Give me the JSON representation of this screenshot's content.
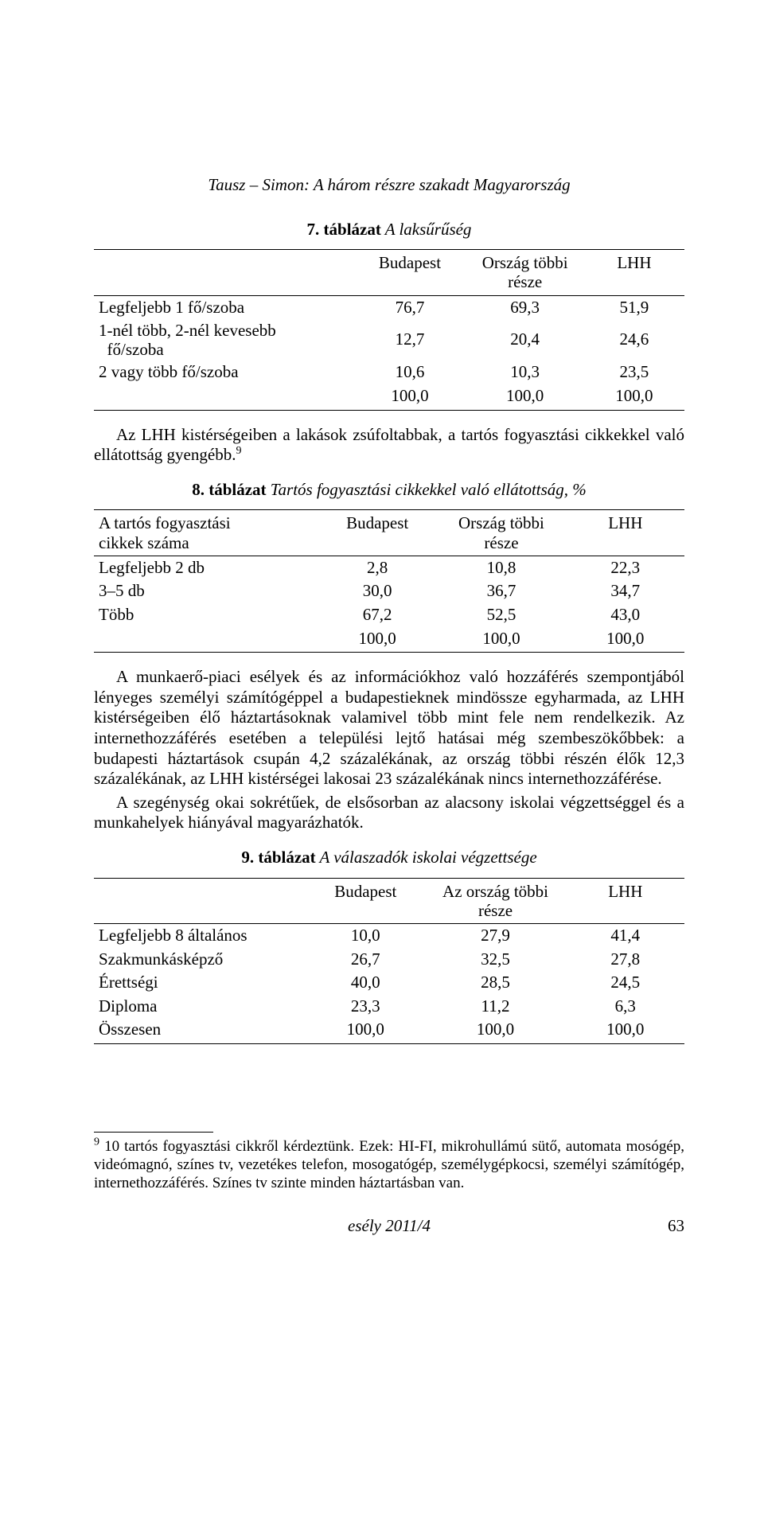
{
  "running_head": "Tausz – Simon: A három részre szakadt Magyarország",
  "table7": {
    "caption_num": "7. táblázat",
    "caption_text": " A laksűrűség",
    "columns": [
      "",
      "Budapest",
      "Ország többi része",
      "LHH"
    ],
    "rows": [
      {
        "label": "Legfeljebb 1 fő/szoba",
        "c1": "76,7",
        "c2": "69,3",
        "c3": "51,9"
      },
      {
        "label": "1-nél több, 2-nél kevesebb fő/szoba",
        "c1": "12,7",
        "c2": "20,4",
        "c3": "24,6"
      },
      {
        "label": "2 vagy több fő/szoba",
        "c1": "10,6",
        "c2": "10,3",
        "c3": "23,5"
      },
      {
        "label": "",
        "c1": "100,0",
        "c2": "100,0",
        "c3": "100,0"
      }
    ],
    "col_widths": [
      "44%",
      "19%",
      "20%",
      "17%"
    ]
  },
  "para_after_t7": "Az LHH kistérségeiben a lakások zsúfoltabbak, a tartós fogyasztási cikkekkel való ellátottság gyengébb.",
  "para_after_t7_sup": "9",
  "table8": {
    "caption_num": "8. táblázat",
    "caption_text": " Tartós fogyasztási cikkekkel való ellátottság, %",
    "columns": [
      "A tartós fogyasztási cikkek száma",
      "Budapest",
      "Ország többi része",
      "LHH"
    ],
    "rows": [
      {
        "label": "Legfeljebb 2 db",
        "c1": "2,8",
        "c2": "10,8",
        "c3": "22,3"
      },
      {
        "label": "3–5 db",
        "c1": "30,0",
        "c2": "36,7",
        "c3": "34,7"
      },
      {
        "label": "Több",
        "c1": "67,2",
        "c2": "52,5",
        "c3": "43,0"
      },
      {
        "label": "",
        "c1": "100,0",
        "c2": "100,0",
        "c3": "100,0"
      }
    ],
    "col_widths": [
      "38%",
      "20%",
      "22%",
      "20%"
    ]
  },
  "para_after_t8": "A munkaerő-piaci esélyek és az információkhoz való hozzáférés szempontjából lényeges személyi számítógéppel a budapestieknek mindössze egyharmada, az LHH kistérségeiben élő háztartásoknak valamivel több mint fele nem rendelkezik. Az internethozzáférés esetében a települési lejtő hatásai még szembeszökőbbek: a budapesti háztartások csupán 4,2 százalékának, az ország többi részén élők 12,3 százalékának, az LHH kistérségei lakosai 23 százalékának nincs internethozzáférése.",
  "para_after_t8b": "A szegénység okai sokrétűek, de elsősorban az alacsony iskolai végzettséggel és a munkahelyek hiányával magyarázhatók.",
  "table9": {
    "caption_num": "9. táblázat",
    "caption_text": " A válaszadók iskolai végzettsége",
    "columns": [
      "",
      "Budapest",
      "Az ország többi része",
      "LHH"
    ],
    "rows": [
      {
        "label": "Legfeljebb 8 általános",
        "c1": "10,0",
        "c2": "27,9",
        "c3": "41,4"
      },
      {
        "label": "Szakmunkásképző",
        "c1": "26,7",
        "c2": "32,5",
        "c3": "27,8"
      },
      {
        "label": "Érettségi",
        "c1": "40,0",
        "c2": "28,5",
        "c3": "24,5"
      },
      {
        "label": "Diploma",
        "c1": "23,3",
        "c2": "11,2",
        "c3": "6,3"
      },
      {
        "label": "Összesen",
        "c1": "100,0",
        "c2": "100,0",
        "c3": "100,0"
      }
    ],
    "col_widths": [
      "36%",
      "20%",
      "24%",
      "20%"
    ]
  },
  "footnote_num": "9",
  "footnote_text": " 10 tartós fogyasztási cikkről kérdeztünk. Ezek: HI-FI, mikrohullámú sütő, automata mosógép, videómagnó, színes tv, vezetékes telefon, mosogatógép, személygépkocsi, személyi számítógép, internethozzáférés. Színes tv szinte minden háztartásban van.",
  "footer_journal": "esély 2011/4",
  "footer_page": "63"
}
